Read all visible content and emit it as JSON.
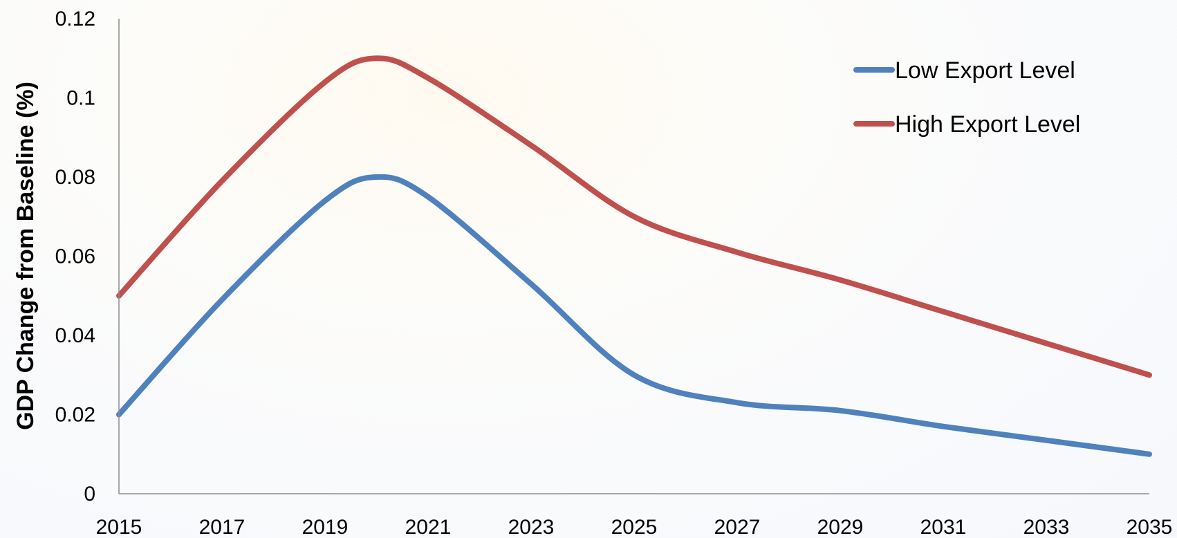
{
  "chart_data": {
    "type": "line",
    "title": "",
    "xlabel": "",
    "ylabel": "GDP Change from Baseline (%)",
    "x": [
      2015,
      2017,
      2019,
      2020,
      2021,
      2023,
      2025,
      2027,
      2029,
      2031,
      2033,
      2035
    ],
    "xticks": [
      "2015",
      "2017",
      "2019",
      "2021",
      "2023",
      "2025",
      "2027",
      "2029",
      "2031",
      "2033",
      "2035"
    ],
    "yticks": [
      "0",
      "0.02",
      "0.04",
      "0.06",
      "0.08",
      "0.1",
      "0.12"
    ],
    "xlim": [
      2015,
      2035
    ],
    "ylim": [
      0,
      0.12
    ],
    "grid": false,
    "legend_position": "top-right",
    "series": [
      {
        "name": "Low Export Level",
        "color": "#4f81bd",
        "values": [
          0.02,
          0.049,
          0.074,
          0.08,
          0.075,
          0.053,
          0.03,
          0.023,
          0.021,
          0.017,
          0.0135,
          0.01
        ]
      },
      {
        "name": "High Export Level",
        "color": "#c0504d",
        "values": [
          0.05,
          0.079,
          0.104,
          0.11,
          0.105,
          0.088,
          0.07,
          0.061,
          0.054,
          0.046,
          0.038,
          0.03
        ]
      }
    ]
  }
}
